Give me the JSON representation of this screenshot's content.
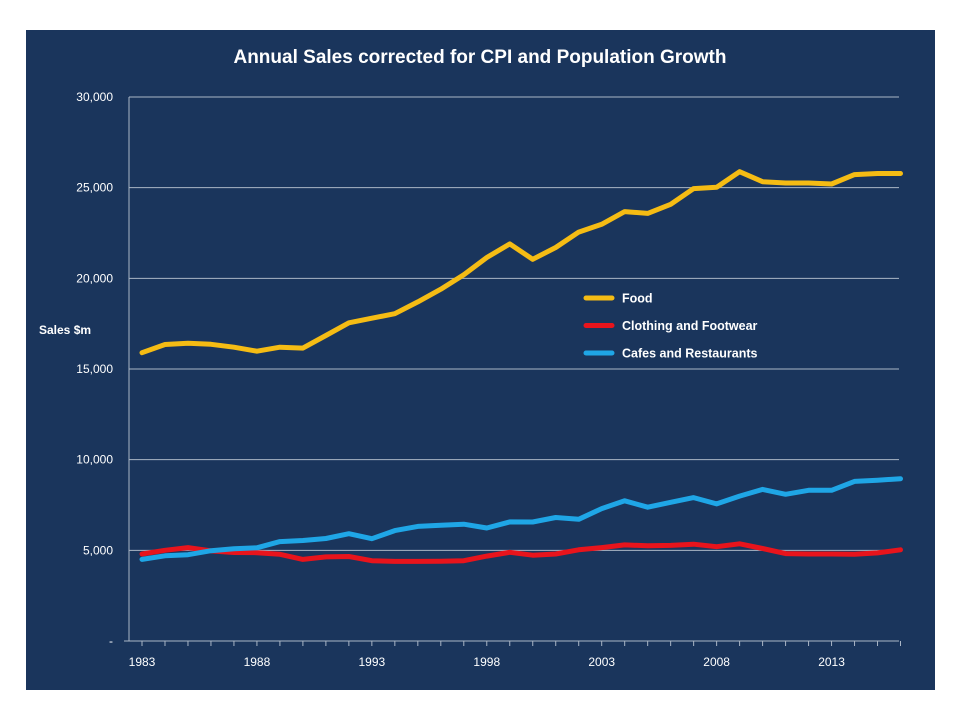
{
  "colors": {
    "background": "#1a355c",
    "gridline": "#aab6c6",
    "text": "#ffffff",
    "food": "#f5bc14",
    "clothing": "#e8141c",
    "cafes": "#1fa6e6"
  },
  "chart_data": {
    "type": "line",
    "title": "Annual Sales corrected for CPI and Population Growth",
    "xlabel": "",
    "ylabel": "Sales $m",
    "ylim": [
      0,
      30000
    ],
    "xlim": [
      1983,
      2016
    ],
    "yticks": [
      0,
      5000,
      10000,
      15000,
      20000,
      25000,
      30000
    ],
    "ytick_labels": [
      "-",
      "5,000",
      "10,000",
      "15,000",
      "20,000",
      "25,000",
      "30,000"
    ],
    "xticks": [
      1983,
      1988,
      1993,
      1998,
      2003,
      2008,
      2013
    ],
    "xtick_labels": [
      "1983",
      "1988",
      "1993",
      "1998",
      "2003",
      "2008",
      "2013"
    ],
    "grid": true,
    "legend_position": "center-right",
    "x": [
      1983,
      1984,
      1985,
      1986,
      1987,
      1988,
      1989,
      1990,
      1991,
      1992,
      1993,
      1994,
      1995,
      1996,
      1997,
      1998,
      1999,
      2000,
      2001,
      2002,
      2003,
      2004,
      2005,
      2006,
      2007,
      2008,
      2009,
      2010,
      2011,
      2012,
      2013,
      2014,
      2015,
      2016
    ],
    "series": [
      {
        "name": "Food",
        "color": "#f5bc14",
        "values": [
          15900,
          16350,
          16420,
          16360,
          16200,
          15980,
          16200,
          16150,
          16850,
          17550,
          17800,
          18050,
          18700,
          19400,
          20200,
          21150,
          21900,
          21050,
          21700,
          22550,
          22980,
          23680,
          23580,
          24080,
          24950,
          25020,
          25880,
          25330,
          25260,
          25260,
          25200,
          25720,
          25780,
          25780
        ]
      },
      {
        "name": "Clothing and Footwear",
        "color": "#e8141c",
        "values": [
          4800,
          5000,
          5150,
          4970,
          4880,
          4870,
          4780,
          4500,
          4640,
          4660,
          4430,
          4390,
          4390,
          4400,
          4430,
          4680,
          4890,
          4730,
          4800,
          5030,
          5150,
          5300,
          5250,
          5270,
          5340,
          5200,
          5360,
          5100,
          4820,
          4800,
          4800,
          4780,
          4860,
          5030
        ]
      },
      {
        "name": "Cafes and Restaurants",
        "color": "#1fa6e6",
        "values": [
          4500,
          4700,
          4760,
          4980,
          5090,
          5140,
          5480,
          5540,
          5650,
          5920,
          5640,
          6090,
          6320,
          6380,
          6440,
          6230,
          6570,
          6560,
          6810,
          6710,
          7300,
          7730,
          7380,
          7650,
          7910,
          7560,
          7990,
          8360,
          8090,
          8310,
          8310,
          8800,
          8860,
          8950
        ]
      }
    ]
  }
}
